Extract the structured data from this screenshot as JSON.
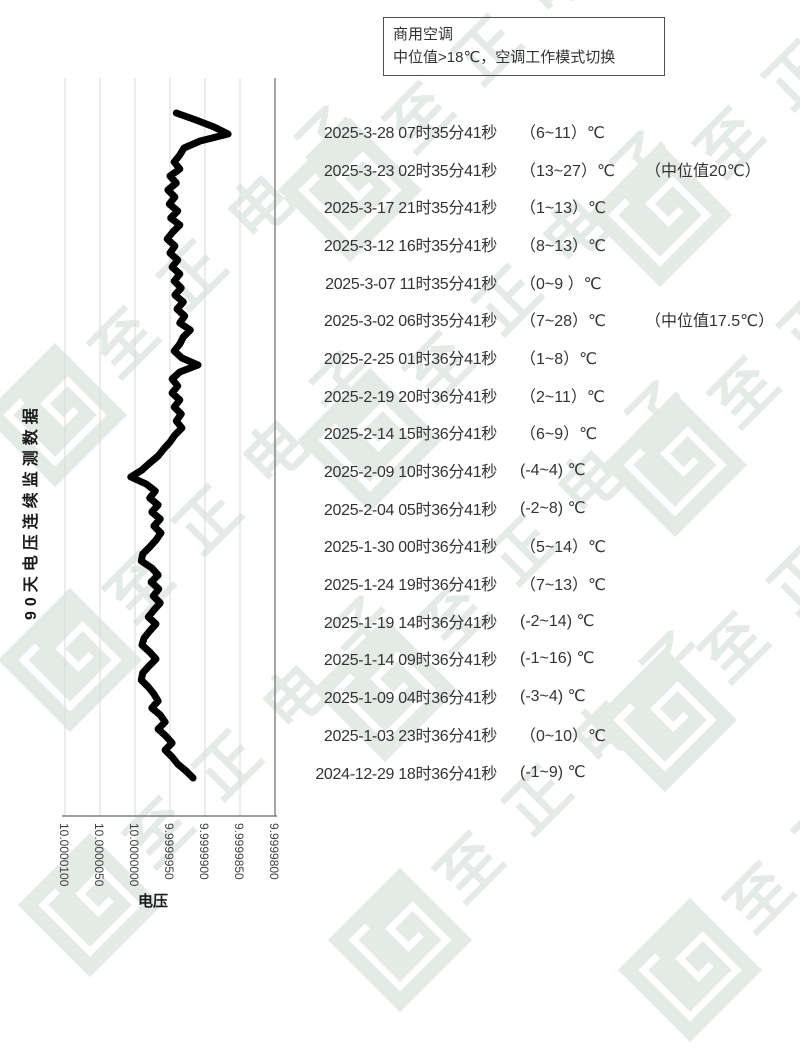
{
  "watermark": {
    "text": "至正电子",
    "color": "#e4eae5"
  },
  "annotation_box": {
    "line1": "商用空调",
    "line2": "中位值>18℃，空调工作模式切换"
  },
  "readings": [
    {
      "time": "2025-3-28 07时35分41秒",
      "range": "（6~11）℃",
      "note": ""
    },
    {
      "time": "2025-3-23 02时35分41秒",
      "range": "（13~27）℃",
      "note": "（中位值20℃）"
    },
    {
      "time": "2025-3-17 21时35分41秒",
      "range": "（1~13）℃",
      "note": ""
    },
    {
      "time": "2025-3-12 16时35分41秒",
      "range": "（8~13）℃",
      "note": ""
    },
    {
      "time": "2025-3-07 11时35分41秒",
      "range": "（0~9 ）℃",
      "note": ""
    },
    {
      "time": "2025-3-02 06时35分41秒",
      "range": "（7~28）℃",
      "note": "（中位值17.5℃）"
    },
    {
      "time": "2025-2-25 01时36分41秒",
      "range": "（1~8）℃",
      "note": ""
    },
    {
      "time": "2025-2-19 20时36分41秒",
      "range": "（2~11）℃",
      "note": ""
    },
    {
      "time": "2025-2-14 15时36分41秒",
      "range": "（6~9）℃",
      "note": ""
    },
    {
      "time": "2025-2-09 10时36分41秒",
      "range": "(-4~4) ℃",
      "note": ""
    },
    {
      "time": "2025-2-04 05时36分41秒",
      "range": "(-2~8) ℃",
      "note": ""
    },
    {
      "time": "2025-1-30 00时36分41秒",
      "range": "（5~14）℃",
      "note": ""
    },
    {
      "time": "2025-1-24 19时36分41秒",
      "range": "（7~13）℃",
      "note": ""
    },
    {
      "time": "2025-1-19 14时36分41秒",
      "range": "(-2~14) ℃",
      "note": ""
    },
    {
      "time": "2025-1-14 09时36分41秒",
      "range": "(-1~16) ℃",
      "note": ""
    },
    {
      "time": "2025-1-09 04时36分41秒",
      "range": "(-3~4) ℃",
      "note": ""
    },
    {
      "time": "2025-1-03 23时36分41秒",
      "range": "（0~10）℃",
      "note": ""
    },
    {
      "time": "2024-12-29 18时36分41秒",
      "range": "(-1~9) ℃",
      "note": ""
    }
  ],
  "chart_data": {
    "type": "line",
    "title": "90天电压连续监测数据",
    "value_axis_label": "电压",
    "orientation": "rotated: time runs top-to-bottom (newest at top), voltage on horizontal axis increasing to the left",
    "value_ticks": [
      "10.0000100",
      "10.0000050",
      "10.0000000",
      "9.9999950",
      "9.9999900",
      "9.9999850",
      "9.9999800"
    ],
    "value_range": [
      9.99998,
      10.00001
    ],
    "grid": true,
    "legend": "none",
    "series": [
      {
        "name": "电压",
        "values": [
          9.9999941,
          9.9999913,
          9.9999887,
          9.9999867,
          9.9999907,
          9.999993,
          9.9999936,
          9.9999944,
          9.9999936,
          9.999995,
          9.9999941,
          9.9999953,
          9.9999943,
          9.9999951,
          9.9999939,
          9.9999949,
          9.9999936,
          9.9999946,
          9.9999954,
          9.9999943,
          9.999995,
          9.9999939,
          9.9999947,
          9.9999936,
          9.9999944,
          9.9999934,
          9.9999943,
          9.9999931,
          9.999994,
          9.9999929,
          9.9999936,
          9.9999921,
          9.9999931,
          9.9999936,
          9.9999944,
          9.9999933,
          9.999991,
          9.9999936,
          9.9999947,
          9.9999939,
          9.9999947,
          9.9999936,
          9.9999944,
          9.9999934,
          9.9999941,
          9.9999933,
          9.9999943,
          9.999995,
          9.9999959,
          9.9999967,
          9.9999979,
          9.999999,
          10.0000006,
          9.9999984,
          9.9999971,
          9.9999979,
          9.9999967,
          9.9999976,
          9.9999964,
          9.9999973,
          9.9999963,
          9.999997,
          9.9999979,
          9.9999989,
          9.9999991,
          9.9999976,
          9.9999967,
          9.9999977,
          9.9999966,
          9.9999974,
          9.9999964,
          9.9999973,
          9.9999981,
          9.999997,
          9.9999979,
          9.9999987,
          9.999999,
          9.9999979,
          9.999997,
          9.999998,
          9.9999989,
          9.9999991,
          9.9999981,
          9.9999973,
          9.9999967,
          9.9999976,
          9.9999964,
          9.9999957,
          9.9999967,
          9.9999956,
          9.9999947,
          9.9999957,
          9.9999947,
          9.9999939,
          9.9999927,
          9.9999917
        ]
      }
    ],
    "colors": {
      "line": "#000000",
      "grid": "#d9d9d9",
      "axis": "#7f7f7f"
    }
  }
}
